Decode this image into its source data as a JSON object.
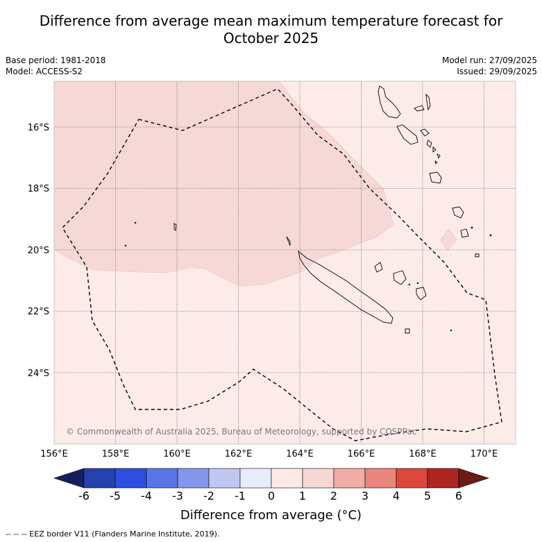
{
  "title_line1": "Difference from average mean maximum temperature forecast for",
  "title_line2": "October 2025",
  "base_period": "Base period: 1981-2018",
  "model": "Model: ACCESS-S2",
  "model_run": "Model run: 27/09/2025",
  "issued": "Issued: 29/09/2025",
  "copyright": "© Commonwealth of Australia 2025, Bureau of Meteorology, supported by COSPPac",
  "lat_labels": [
    "16°S",
    "18°S",
    "20°S",
    "22°S",
    "24°S"
  ],
  "lon_labels": [
    "156°E",
    "158°E",
    "160°E",
    "162°E",
    "164°E",
    "166°E",
    "168°E",
    "170°E"
  ],
  "colorbar": {
    "ticks": [
      "-6",
      "-5",
      "-4",
      "-3",
      "-2",
      "-1",
      "0",
      "1",
      "2",
      "3",
      "4",
      "5",
      "6"
    ],
    "colors": [
      "#14205e",
      "#2541b0",
      "#2e4ee0",
      "#5a75e6",
      "#8396e9",
      "#c0c8f2",
      "#e8ebfa",
      "#fce9e6",
      "#f7d7d4",
      "#f0aca6",
      "#e8857c",
      "#dc473c",
      "#ad2620",
      "#6b1b15"
    ],
    "label": "Difference from average (°C)"
  },
  "footer": "-- -- -- EEZ border V11 (Flanders Marine Institute, 2019)."
}
